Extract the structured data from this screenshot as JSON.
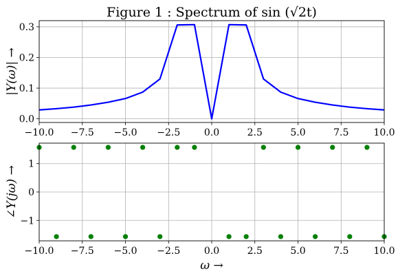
{
  "chart_data": [
    {
      "type": "line",
      "title": "Figure 1 : Spectrum of sin (√2t)",
      "xlabel": "",
      "ylabel": "|Y(ω)| →",
      "xlim": [
        -10,
        10
      ],
      "ylim": [
        -0.012,
        0.32
      ],
      "xticks": [
        -10,
        -7.5,
        -5,
        -2.5,
        0,
        2.5,
        5,
        7.5,
        10
      ],
      "xticklabels": [
        "−10.0",
        "−7.5",
        "−5.0",
        "−2.5",
        "0.0",
        "2.5",
        "5.0",
        "7.5",
        "10.0"
      ],
      "yticks": [
        0,
        0.1,
        0.2,
        0.3
      ],
      "yticklabels": [
        "0.0",
        "0.1",
        "0.2",
        "0.3"
      ],
      "grid": true,
      "series": [
        {
          "color": "#0000ff",
          "x": [
            -10,
            -9,
            -8,
            -7,
            -6,
            -5,
            -4,
            -3,
            -2,
            -1,
            0,
            1,
            2,
            3,
            4,
            5,
            6,
            7,
            8,
            9,
            10
          ],
          "y": [
            0.029,
            0.033,
            0.038,
            0.045,
            0.054,
            0.066,
            0.087,
            0.13,
            0.306,
            0.307,
            0.0,
            0.307,
            0.306,
            0.13,
            0.087,
            0.066,
            0.054,
            0.045,
            0.038,
            0.033,
            0.029
          ]
        }
      ]
    },
    {
      "type": "scatter",
      "title": "",
      "xlabel": "ω →",
      "ylabel": "∠Y(jω) →",
      "xlim": [
        -10,
        10
      ],
      "ylim": [
        -1.72,
        1.72
      ],
      "xticks": [
        -10,
        -7.5,
        -5,
        -2.5,
        0,
        2.5,
        5,
        7.5,
        10
      ],
      "xticklabels": [
        "−10.0",
        "−7.5",
        "−5.0",
        "−2.5",
        "0.0",
        "2.5",
        "5.0",
        "7.5",
        "10.0"
      ],
      "yticks": [
        -1,
        0,
        1
      ],
      "yticklabels": [
        "−1",
        "0",
        "1"
      ],
      "grid": true,
      "series": [
        {
          "color": "#008000",
          "x": [
            -10,
            -9,
            -8,
            -7,
            -6,
            -5,
            -4,
            -3,
            -2,
            -1,
            1,
            2,
            3,
            4,
            5,
            6,
            7,
            8,
            9,
            10
          ],
          "y": [
            1.5708,
            -1.5708,
            1.5708,
            -1.5708,
            1.5708,
            -1.5708,
            1.5708,
            -1.5708,
            1.5708,
            1.5708,
            -1.5708,
            -1.5708,
            1.5708,
            -1.5708,
            1.5708,
            -1.5708,
            1.5708,
            -1.5708,
            1.5708,
            -1.5708
          ]
        }
      ]
    }
  ]
}
